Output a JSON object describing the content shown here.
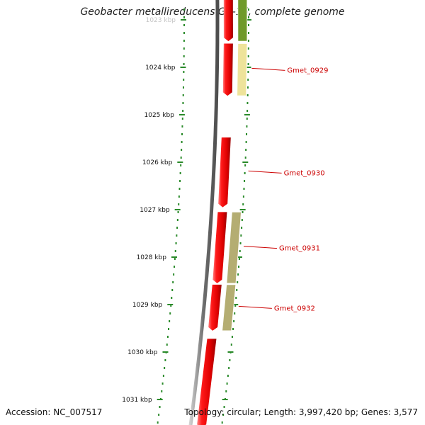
{
  "title": "Geobacter metallireducens GS-15, complete genome",
  "footer": {
    "accession": "Accession: NC_007517",
    "summary": "Topology: circular; Length: 3,997,420 bp; Genes: 3,577"
  },
  "scale": {
    "unit": "kbp",
    "ticks": [
      {
        "kbp": 1023,
        "label": "1023 kbp"
      },
      {
        "kbp": 1024,
        "label": "1024 kbp"
      },
      {
        "kbp": 1025,
        "label": "1025 kbp"
      },
      {
        "kbp": 1026,
        "label": "1026 kbp"
      },
      {
        "kbp": 1027,
        "label": "1027 kbp"
      },
      {
        "kbp": 1028,
        "label": "1028 kbp"
      },
      {
        "kbp": 1029,
        "label": "1029 kbp"
      },
      {
        "kbp": 1030,
        "label": "1030 kbp"
      },
      {
        "kbp": 1031,
        "label": "1031 kbp"
      }
    ]
  },
  "genes": [
    {
      "name": "Gmet_0929",
      "start_kbp": 1023.5,
      "end_kbp": 1024.6
    },
    {
      "name": "Gmet_0930",
      "start_kbp": 1025.48,
      "end_kbp": 1026.95
    },
    {
      "name": "Gmet_0931",
      "start_kbp": 1027.05,
      "end_kbp": 1028.55
    },
    {
      "name": "Gmet_0932",
      "start_kbp": 1028.58,
      "end_kbp": 1029.55
    }
  ],
  "features": {
    "cds": [
      {
        "start_kbp": 1022.4,
        "end_kbp": 1023.45,
        "color": "#e00000"
      },
      {
        "start_kbp": 1023.5,
        "end_kbp": 1024.6,
        "color": "#e00000"
      },
      {
        "start_kbp": 1025.48,
        "end_kbp": 1026.95,
        "color": "#e00000"
      },
      {
        "start_kbp": 1027.05,
        "end_kbp": 1028.55,
        "color": "#e00000"
      },
      {
        "start_kbp": 1028.58,
        "end_kbp": 1029.55,
        "color": "#e00000"
      },
      {
        "start_kbp": 1029.72,
        "end_kbp": 1031.6,
        "color": "#e00000"
      }
    ],
    "cog": [
      {
        "start_kbp": 1022.4,
        "end_kbp": 1023.45,
        "color": "#6f9a2a"
      },
      {
        "start_kbp": 1023.5,
        "end_kbp": 1024.6,
        "color": "#eee39a"
      },
      {
        "start_kbp": 1027.05,
        "end_kbp": 1028.55,
        "color": "#b4ad72"
      },
      {
        "start_kbp": 1028.58,
        "end_kbp": 1029.55,
        "color": "#b4ad72"
      }
    ]
  },
  "colors": {
    "backbone": "#7a7a7a",
    "tick": "#2a8a2a",
    "cds": "#e00000",
    "label": "#cc0000"
  }
}
